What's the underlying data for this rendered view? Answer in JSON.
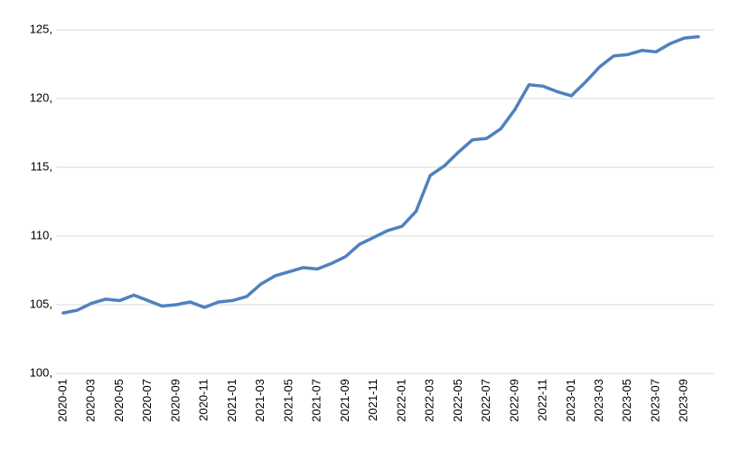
{
  "chart_data": {
    "type": "line",
    "categories": [
      "2020-01",
      null,
      "2020-03",
      null,
      "2020-05",
      null,
      "2020-07",
      null,
      "2020-09",
      null,
      "2020-11",
      null,
      "2021-01",
      null,
      "2021-03",
      null,
      "2021-05",
      null,
      "2021-07",
      null,
      "2021-09",
      null,
      "2021-11",
      null,
      "2022-01",
      null,
      "2022-03",
      null,
      "2022-05",
      null,
      "2022-07",
      null,
      "2022-09",
      null,
      "2022-11",
      null,
      "2023-01",
      null,
      "2023-03",
      null,
      "2023-05",
      null,
      "2023-07",
      null,
      "2023-09",
      null
    ],
    "series": [
      {
        "color": "#4f81bd",
        "values": [
          104.4,
          104.6,
          105.1,
          105.4,
          105.3,
          105.7,
          105.3,
          104.9,
          105.0,
          105.2,
          104.8,
          105.2,
          105.3,
          105.6,
          106.5,
          107.1,
          107.4,
          107.7,
          107.6,
          108.0,
          108.5,
          109.4,
          109.9,
          110.4,
          110.7,
          111.8,
          114.4,
          115.1,
          116.1,
          117.0,
          117.1,
          117.8,
          119.2,
          121.0,
          120.9,
          120.5,
          120.2,
          121.2,
          122.3,
          123.1,
          123.2,
          123.5,
          123.4,
          124.0,
          124.4,
          124.5
        ]
      }
    ],
    "ylim": [
      100,
      125
    ],
    "yticks": [
      {
        "value": 100,
        "label": "100,"
      },
      {
        "value": 105,
        "label": "105,"
      },
      {
        "value": 110,
        "label": "110,"
      },
      {
        "value": 115,
        "label": "115,"
      },
      {
        "value": 120,
        "label": "120,"
      },
      {
        "value": 125,
        "label": "125,"
      }
    ],
    "grid": true
  }
}
